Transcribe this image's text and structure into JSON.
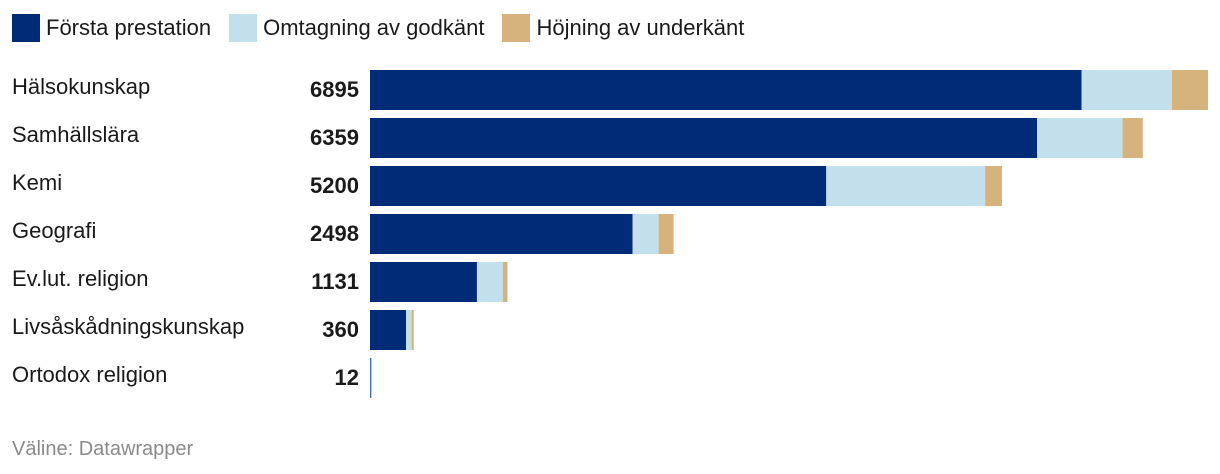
{
  "legend": [
    {
      "label": "Första prestation",
      "color": "#002c77"
    },
    {
      "label": "Omtagning av godkänt",
      "color": "#c3dfeb"
    },
    {
      "label": "Höjning av underkänt",
      "color": "#d6b37d"
    }
  ],
  "source": "Väline: Datawrapper",
  "chart_data": {
    "type": "bar",
    "orientation": "horizontal",
    "stacked": true,
    "categories": [
      "Hälsokunskap",
      "Samhällslära",
      "Kemi",
      "Geografi",
      "Ev.lut. religion",
      "Livsåskådningskunskap",
      "Ortodox religion"
    ],
    "totals": [
      "6895",
      "6359",
      "5200",
      "2498",
      "1131",
      "360",
      "12"
    ],
    "series": [
      {
        "name": "Första prestation",
        "color": "#002c77",
        "values": [
          5855,
          5489,
          3754,
          2161,
          880,
          297,
          6
        ]
      },
      {
        "name": "Omtagning av godkänt",
        "color": "#c3dfeb",
        "values": [
          744,
          703,
          1307,
          214,
          214,
          45,
          3
        ]
      },
      {
        "name": "Höjning av underkänt",
        "color": "#d6b37d",
        "values": [
          296,
          167,
          139,
          123,
          37,
          18,
          3
        ]
      }
    ],
    "xlim": [
      0,
      6895
    ]
  }
}
